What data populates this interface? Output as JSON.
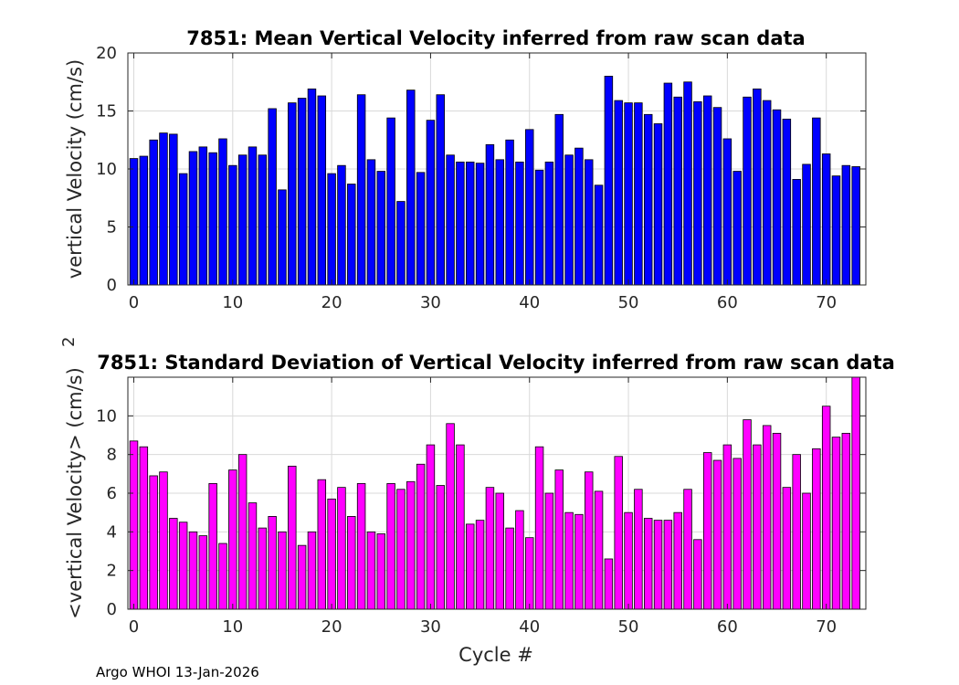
{
  "footer": "Argo WHOI 13-Jan-2026",
  "colors": {
    "mean_bar": "#0000ff",
    "std_bar": "#ff00ff",
    "bar_edge": "#000000"
  },
  "chart_data": [
    {
      "type": "bar",
      "title": "7851: Mean Vertical Velocity inferred from raw scan data",
      "xlabel": "",
      "ylabel": "vertical Velocity (cm/s)",
      "xlim": [
        -0.6,
        74
      ],
      "ylim": [
        0,
        20
      ],
      "xticks": [
        0,
        10,
        20,
        30,
        40,
        50,
        60,
        70
      ],
      "yticks": [
        0,
        5,
        10,
        15,
        20
      ],
      "grid": true,
      "x": [
        0,
        1,
        2,
        3,
        4,
        5,
        6,
        7,
        8,
        9,
        10,
        11,
        12,
        13,
        14,
        15,
        16,
        17,
        18,
        19,
        20,
        21,
        22,
        23,
        24,
        25,
        26,
        27,
        28,
        29,
        30,
        31,
        32,
        33,
        34,
        35,
        36,
        37,
        38,
        39,
        40,
        41,
        42,
        43,
        44,
        45,
        46,
        47,
        48,
        49,
        50,
        51,
        52,
        53,
        54,
        55,
        56,
        57,
        58,
        59,
        60,
        61,
        62,
        63,
        64,
        65,
        66,
        67,
        68,
        69,
        70,
        71,
        72,
        73
      ],
      "values": [
        10.9,
        11.1,
        12.5,
        13.1,
        13.0,
        9.6,
        11.5,
        11.9,
        11.4,
        12.6,
        10.3,
        11.2,
        11.9,
        11.2,
        15.2,
        8.2,
        15.7,
        16.1,
        16.9,
        16.3,
        9.6,
        10.3,
        8.7,
        16.4,
        10.8,
        9.8,
        14.4,
        7.2,
        16.8,
        9.7,
        14.2,
        16.4,
        11.2,
        10.6,
        10.6,
        10.5,
        12.1,
        10.8,
        12.5,
        10.6,
        13.4,
        9.9,
        10.6,
        14.7,
        11.2,
        11.8,
        10.8,
        8.6,
        18.0,
        15.9,
        15.7,
        15.7,
        14.7,
        13.9,
        17.4,
        16.2,
        17.5,
        15.8,
        16.3,
        15.3,
        12.6,
        9.8,
        16.2,
        16.9,
        15.9,
        15.1,
        14.3,
        9.1,
        10.4,
        14.4,
        11.3,
        9.4,
        10.3,
        10.2
      ]
    },
    {
      "type": "bar",
      "title": "7851: Standard Deviation of Vertical Velocity inferred from raw scan data",
      "xlabel": "Cycle #",
      "ylabel": "<vertical Velocity> (cm/s)",
      "ylabel_superscript": "2",
      "xlim": [
        -0.6,
        74
      ],
      "ylim": [
        0,
        12
      ],
      "xticks": [
        0,
        10,
        20,
        30,
        40,
        50,
        60,
        70
      ],
      "yticks": [
        0,
        2,
        4,
        6,
        8,
        10
      ],
      "grid": true,
      "x": [
        0,
        1,
        2,
        3,
        4,
        5,
        6,
        7,
        8,
        9,
        10,
        11,
        12,
        13,
        14,
        15,
        16,
        17,
        18,
        19,
        20,
        21,
        22,
        23,
        24,
        25,
        26,
        27,
        28,
        29,
        30,
        31,
        32,
        33,
        34,
        35,
        36,
        37,
        38,
        39,
        40,
        41,
        42,
        43,
        44,
        45,
        46,
        47,
        48,
        49,
        50,
        51,
        52,
        53,
        54,
        55,
        56,
        57,
        58,
        59,
        60,
        61,
        62,
        63,
        64,
        65,
        66,
        67,
        68,
        69,
        70,
        71,
        72,
        73
      ],
      "values": [
        8.7,
        8.4,
        6.9,
        7.1,
        4.7,
        4.5,
        4.0,
        3.8,
        6.5,
        3.4,
        7.2,
        8.0,
        5.5,
        4.2,
        4.8,
        4.0,
        7.4,
        3.3,
        4.0,
        6.7,
        5.7,
        6.3,
        4.8,
        6.5,
        4.0,
        3.9,
        6.5,
        6.2,
        6.6,
        7.5,
        8.5,
        6.4,
        9.6,
        8.5,
        4.4,
        4.6,
        6.3,
        6.0,
        4.2,
        5.1,
        3.7,
        8.4,
        6.0,
        7.2,
        5.0,
        4.9,
        7.1,
        6.1,
        2.6,
        7.9,
        5.0,
        6.2,
        4.7,
        4.6,
        4.6,
        5.0,
        6.2,
        3.6,
        8.1,
        7.7,
        8.5,
        7.8,
        9.8,
        8.5,
        9.5,
        9.1,
        6.3,
        8.0,
        6.0,
        8.3,
        10.5,
        8.9,
        9.1,
        12.0
      ]
    }
  ]
}
